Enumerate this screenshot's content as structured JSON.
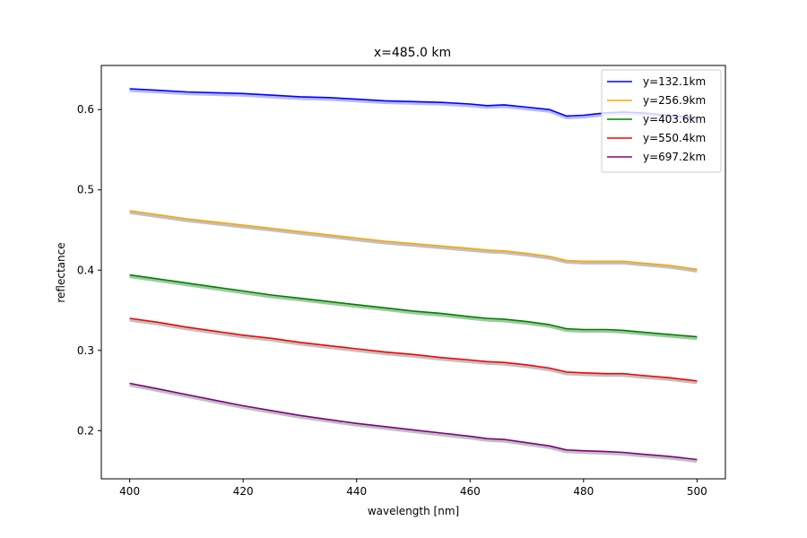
{
  "chart_data": {
    "type": "line",
    "title": "x=485.0 km",
    "xlabel": "wavelength [nm]",
    "ylabel": "reflectance",
    "xlim": [
      395,
      505
    ],
    "ylim": [
      0.14,
      0.655
    ],
    "xticks": [
      400,
      420,
      440,
      460,
      480,
      500
    ],
    "yticks": [
      0.2,
      0.3,
      0.4,
      0.5,
      0.6
    ],
    "grid": false,
    "legend_position": "top-right",
    "series": [
      {
        "name": "y=132.1km",
        "color": "#0000ff",
        "band_color": "#b8b8ff",
        "x": [
          400,
          405,
          410,
          415,
          420,
          425,
          430,
          435,
          440,
          445,
          450,
          455,
          460,
          463,
          466,
          470,
          474,
          477,
          480,
          484,
          487,
          490,
          495,
          500
        ],
        "y": [
          0.626,
          0.624,
          0.622,
          0.621,
          0.62,
          0.618,
          0.616,
          0.615,
          0.613,
          0.611,
          0.61,
          0.609,
          0.607,
          0.605,
          0.606,
          0.603,
          0.6,
          0.592,
          0.593,
          0.596,
          0.597,
          0.596,
          0.593,
          0.59
        ]
      },
      {
        "name": "y=256.9km",
        "color": "#ffa500",
        "band_color": "#c0c0c0",
        "x": [
          400,
          405,
          410,
          415,
          420,
          425,
          430,
          435,
          440,
          445,
          450,
          455,
          460,
          463,
          466,
          470,
          474,
          477,
          480,
          484,
          487,
          490,
          495,
          500
        ],
        "y": [
          0.474,
          0.469,
          0.464,
          0.46,
          0.456,
          0.452,
          0.448,
          0.444,
          0.44,
          0.436,
          0.433,
          0.43,
          0.427,
          0.425,
          0.424,
          0.421,
          0.417,
          0.412,
          0.411,
          0.411,
          0.411,
          0.409,
          0.406,
          0.401
        ]
      },
      {
        "name": "y=403.6km",
        "color": "#008000",
        "band_color": "#9ec99e",
        "x": [
          400,
          405,
          410,
          415,
          420,
          425,
          430,
          435,
          440,
          445,
          450,
          455,
          460,
          463,
          466,
          470,
          474,
          477,
          480,
          484,
          487,
          490,
          495,
          500
        ],
        "y": [
          0.394,
          0.389,
          0.384,
          0.379,
          0.374,
          0.369,
          0.365,
          0.361,
          0.357,
          0.353,
          0.349,
          0.346,
          0.342,
          0.34,
          0.339,
          0.336,
          0.332,
          0.327,
          0.326,
          0.326,
          0.325,
          0.323,
          0.32,
          0.317
        ]
      },
      {
        "name": "y=550.4km",
        "color": "#ff0000",
        "band_color": "#c0c0c0",
        "x": [
          400,
          405,
          410,
          415,
          420,
          425,
          430,
          435,
          440,
          445,
          450,
          455,
          460,
          463,
          466,
          470,
          474,
          477,
          480,
          484,
          487,
          490,
          495,
          500
        ],
        "y": [
          0.34,
          0.335,
          0.329,
          0.324,
          0.319,
          0.315,
          0.31,
          0.306,
          0.302,
          0.298,
          0.295,
          0.291,
          0.288,
          0.286,
          0.285,
          0.282,
          0.278,
          0.273,
          0.272,
          0.271,
          0.271,
          0.269,
          0.266,
          0.262
        ]
      },
      {
        "name": "y=697.2km",
        "color": "#800080",
        "band_color": "#c0c0c0",
        "x": [
          400,
          405,
          410,
          415,
          420,
          425,
          430,
          435,
          440,
          445,
          450,
          455,
          460,
          463,
          466,
          470,
          474,
          477,
          480,
          484,
          487,
          490,
          495,
          500
        ],
        "y": [
          0.259,
          0.252,
          0.245,
          0.238,
          0.231,
          0.225,
          0.219,
          0.214,
          0.209,
          0.205,
          0.201,
          0.197,
          0.193,
          0.19,
          0.189,
          0.185,
          0.181,
          0.176,
          0.175,
          0.174,
          0.173,
          0.171,
          0.168,
          0.164
        ]
      }
    ]
  }
}
